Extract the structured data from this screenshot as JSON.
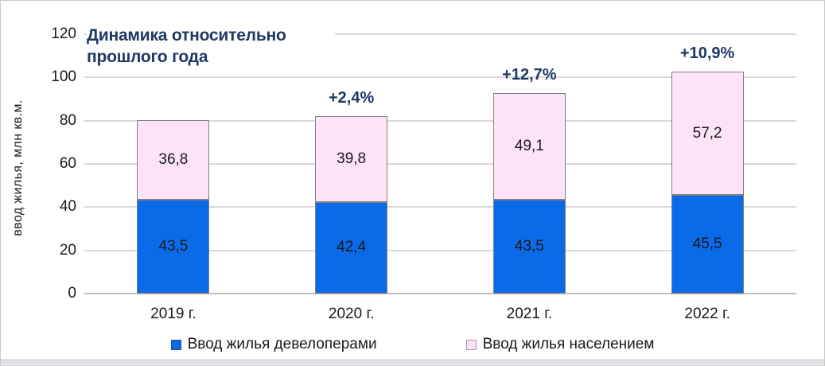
{
  "chart_data": {
    "type": "bar",
    "stacked": true,
    "title": "Динамика относительно прошлого года",
    "ylabel": "ввод жилья, млн кв.м.",
    "categories": [
      "2019 г.",
      "2020 г.",
      "2021 г.",
      "2022 г."
    ],
    "series": [
      {
        "name": "Ввод жилья девелоперами",
        "values": [
          43.5,
          42.4,
          43.5,
          45.5
        ],
        "labels": [
          "43,5",
          "42,4",
          "43,5",
          "45,5"
        ],
        "color": "#0B6AE8",
        "marker_border": "#1F4E9C"
      },
      {
        "name": "Ввод жилья населением",
        "values": [
          36.8,
          39.8,
          49.1,
          57.2
        ],
        "labels": [
          "36,8",
          "39,8",
          "49,1",
          "57,2"
        ],
        "color": "#FCE3F7",
        "marker_border": "#B58CB5"
      }
    ],
    "annotations": [
      "",
      "+2,4%",
      "+12,7%",
      "+10,9%"
    ],
    "yticks": [
      0,
      20,
      40,
      60,
      80,
      100,
      120
    ],
    "ylim": [
      0,
      120
    ],
    "grid": true,
    "legend_position": "bottom",
    "colors": {
      "title_navy": "#1F3864",
      "grid": "#D9D9D9",
      "axis": "#BFBFBF",
      "bar_border": "#7F7F7F",
      "text": "#1A1A1A"
    }
  }
}
